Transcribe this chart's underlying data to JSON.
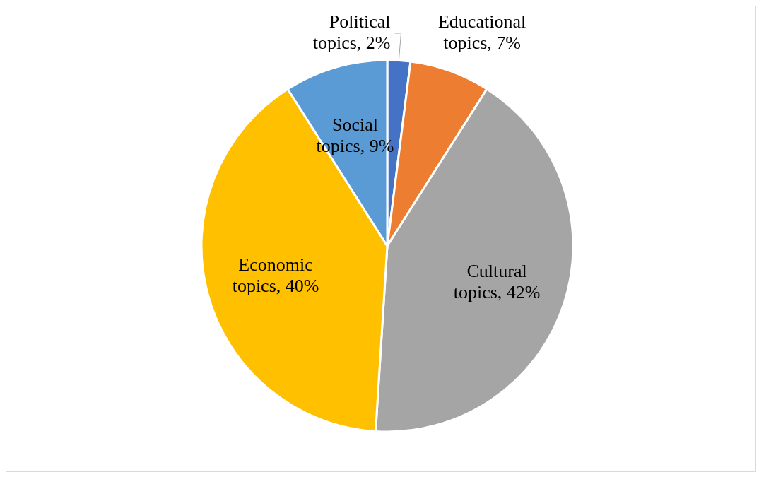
{
  "chart_data": {
    "type": "pie",
    "categories": [
      "Political topics",
      "Educational topics",
      "Cultural topics",
      "Economic topics",
      "Social topics"
    ],
    "values": [
      2,
      7,
      42,
      40,
      9
    ],
    "value_labels": [
      "2%",
      "7%",
      "42%",
      "40%",
      "9%"
    ],
    "colors": [
      "#4472c4",
      "#ed7d31",
      "#a5a5a5",
      "#ffc000",
      "#5b9bd5"
    ],
    "legend": false
  }
}
